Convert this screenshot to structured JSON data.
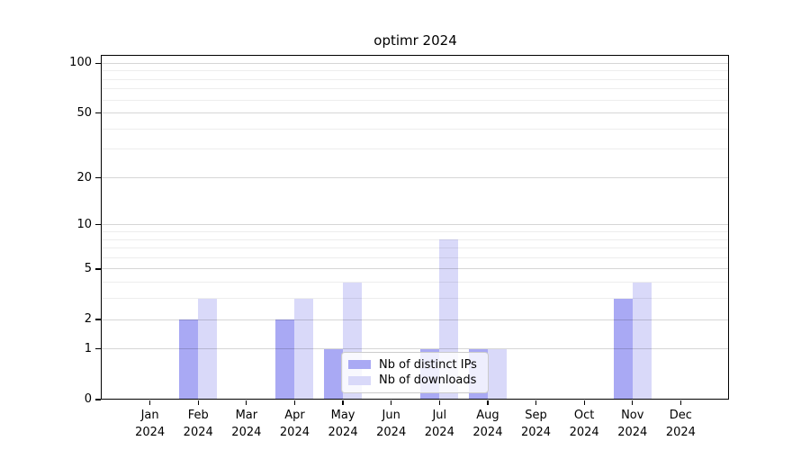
{
  "title": "optimr 2024",
  "background_color": "#ffffff",
  "chart_data": {
    "type": "bar",
    "title": "optimr 2024",
    "xlabel": "",
    "ylabel": "",
    "x_categories": [
      "Jan",
      "Feb",
      "Mar",
      "Apr",
      "May",
      "Jun",
      "Jul",
      "Aug",
      "Sep",
      "Oct",
      "Nov",
      "Dec"
    ],
    "x_year": "2024",
    "series": [
      {
        "name": "Nb of distinct IPs",
        "color": "#a9a9f4",
        "values": [
          0,
          2,
          0,
          2,
          1,
          0,
          1,
          1,
          0,
          0,
          3,
          0
        ]
      },
      {
        "name": "Nb of downloads",
        "color": "#d9d9f9",
        "values": [
          0,
          3,
          0,
          3,
          4,
          0,
          8,
          1,
          0,
          0,
          4,
          0
        ]
      }
    ],
    "yscale": "log1p",
    "ylim": [
      0,
      111
    ],
    "yticks": [
      0,
      1,
      2,
      5,
      10,
      20,
      50,
      100
    ],
    "ytick_labels": [
      "0",
      "1",
      "2",
      "5",
      "10",
      "20",
      "50",
      "100"
    ],
    "minor_yticks": [
      3,
      4,
      6,
      7,
      8,
      9,
      30,
      40,
      60,
      70,
      80,
      90
    ],
    "grid": "horizontal",
    "legend_position": "lower center inside plot",
    "axis_color": "#000000"
  }
}
